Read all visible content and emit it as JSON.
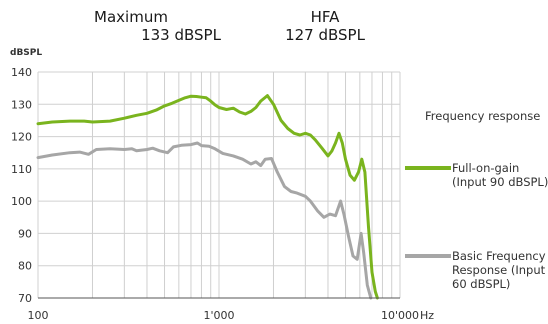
{
  "header": {
    "maximum_label": "Maximum",
    "maximum_value": "133 dBSPL",
    "hfa_label": "HFA",
    "hfa_value": "127 dBSPL"
  },
  "colors": {
    "full_on_gain": "#7ab41e",
    "basic_frequency_response": "#a6a6a6",
    "grid": "#d0d0d0",
    "axis": "#555555"
  },
  "chart_data": {
    "type": "line",
    "title": "Frequency response",
    "ylabel": "dBSPL",
    "xlabel": "Hz",
    "xscale": "log",
    "xlim": [
      100,
      10000
    ],
    "ylim": [
      70,
      140
    ],
    "grid": true,
    "legend_position": "right",
    "x_ticks": [
      {
        "value": 100,
        "label": "100"
      },
      {
        "value": 1000,
        "label": "1'000"
      },
      {
        "value": 10000,
        "label": "10'000"
      }
    ],
    "y_ticks": [
      70,
      80,
      90,
      100,
      110,
      120,
      130,
      140
    ],
    "series": [
      {
        "name": "Full-on-gain\n(Input 90 dBSPL)",
        "color": "#7ab41e",
        "points": [
          [
            100,
            124
          ],
          [
            120,
            124.5
          ],
          [
            150,
            124.8
          ],
          [
            180,
            124.8
          ],
          [
            200,
            124.5
          ],
          [
            250,
            124.8
          ],
          [
            300,
            125.7
          ],
          [
            350,
            126.6
          ],
          [
            400,
            127.2
          ],
          [
            450,
            128.2
          ],
          [
            500,
            129.5
          ],
          [
            550,
            130.3
          ],
          [
            600,
            131.2
          ],
          [
            650,
            132.0
          ],
          [
            700,
            132.5
          ],
          [
            750,
            132.4
          ],
          [
            800,
            132.2
          ],
          [
            850,
            132.0
          ],
          [
            900,
            131.0
          ],
          [
            950,
            129.8
          ],
          [
            1000,
            129.0
          ],
          [
            1100,
            128.4
          ],
          [
            1200,
            128.8
          ],
          [
            1300,
            127.6
          ],
          [
            1400,
            127.0
          ],
          [
            1500,
            127.8
          ],
          [
            1600,
            129.0
          ],
          [
            1700,
            131.0
          ],
          [
            1850,
            132.7
          ],
          [
            2000,
            130.0
          ],
          [
            2200,
            125.0
          ],
          [
            2400,
            122.5
          ],
          [
            2600,
            121.0
          ],
          [
            2800,
            120.5
          ],
          [
            3000,
            121.0
          ],
          [
            3200,
            120.5
          ],
          [
            3400,
            119.0
          ],
          [
            3700,
            116.5
          ],
          [
            4000,
            114.0
          ],
          [
            4200,
            115.5
          ],
          [
            4400,
            118.0
          ],
          [
            4600,
            121.0
          ],
          [
            4800,
            118.0
          ],
          [
            5000,
            113.0
          ],
          [
            5300,
            108.0
          ],
          [
            5600,
            106.5
          ],
          [
            5900,
            109.0
          ],
          [
            6150,
            113.0
          ],
          [
            6400,
            109.0
          ],
          [
            6700,
            92.0
          ],
          [
            7000,
            78.0
          ],
          [
            7300,
            72.0
          ],
          [
            7500,
            70.0
          ]
        ]
      },
      {
        "name": "Basic Frequency\nResponse (Input\n60 dBSPL)",
        "color": "#a6a6a6",
        "points": [
          [
            100,
            113.5
          ],
          [
            120,
            114.3
          ],
          [
            150,
            115.0
          ],
          [
            170,
            115.2
          ],
          [
            190,
            114.5
          ],
          [
            210,
            116.0
          ],
          [
            250,
            116.2
          ],
          [
            300,
            116.0
          ],
          [
            330,
            116.2
          ],
          [
            350,
            115.6
          ],
          [
            400,
            116.0
          ],
          [
            430,
            116.4
          ],
          [
            470,
            115.6
          ],
          [
            520,
            115.0
          ],
          [
            560,
            116.8
          ],
          [
            620,
            117.3
          ],
          [
            700,
            117.5
          ],
          [
            760,
            118.0
          ],
          [
            800,
            117.2
          ],
          [
            880,
            117.0
          ],
          [
            950,
            116.2
          ],
          [
            1050,
            114.8
          ],
          [
            1200,
            114.0
          ],
          [
            1350,
            113.0
          ],
          [
            1500,
            111.5
          ],
          [
            1600,
            112.2
          ],
          [
            1700,
            111.0
          ],
          [
            1800,
            113.0
          ],
          [
            1950,
            113.2
          ],
          [
            2100,
            109.0
          ],
          [
            2300,
            104.5
          ],
          [
            2500,
            103.0
          ],
          [
            2700,
            102.5
          ],
          [
            3000,
            101.5
          ],
          [
            3200,
            100.0
          ],
          [
            3500,
            97.0
          ],
          [
            3800,
            95.0
          ],
          [
            4100,
            96.0
          ],
          [
            4400,
            95.5
          ],
          [
            4700,
            100.0
          ],
          [
            4900,
            96.0
          ],
          [
            5200,
            89.0
          ],
          [
            5500,
            83.0
          ],
          [
            5800,
            82.0
          ],
          [
            6100,
            90.0
          ],
          [
            6300,
            84.0
          ],
          [
            6600,
            74.0
          ],
          [
            6900,
            70.0
          ]
        ]
      }
    ]
  }
}
